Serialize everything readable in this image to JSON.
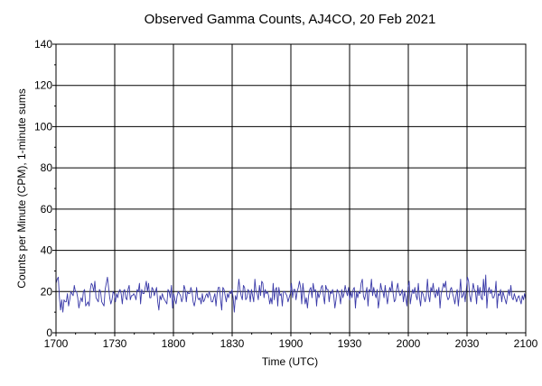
{
  "chart_data": {
    "type": "line",
    "title": "Observed Gamma Counts, AJ4CO, 20 Feb 2021",
    "xlabel": "Time (UTC)",
    "ylabel": "Counts per Minute (CPM), 1-minute sums",
    "xlim": [
      "1700",
      "2100"
    ],
    "ylim": [
      0,
      140
    ],
    "x_ticks": [
      "1700",
      "1730",
      "1800",
      "1830",
      "1900",
      "1930",
      "2000",
      "2030",
      "2100"
    ],
    "y_ticks": [
      0,
      20,
      40,
      60,
      80,
      100,
      120,
      140
    ],
    "grid": true,
    "series": [
      {
        "color": "#3a3aa8",
        "values": [
          24,
          26,
          27,
          17,
          11,
          16,
          10,
          16,
          15,
          15,
          19,
          13,
          16,
          20,
          19,
          18,
          23,
          20,
          20,
          17,
          12,
          15,
          17,
          15,
          20,
          21,
          13,
          14,
          15,
          13,
          21,
          24,
          23,
          20,
          25,
          17,
          16,
          15,
          21,
          20,
          15,
          14,
          13,
          21,
          24,
          27,
          22,
          17,
          14,
          16,
          20,
          19,
          15,
          19,
          17,
          20,
          21,
          19,
          14,
          20,
          21,
          17,
          16,
          21,
          23,
          16,
          18,
          18,
          19,
          18,
          16,
          21,
          20,
          24,
          14,
          21,
          19,
          19,
          22,
          25,
          20,
          24,
          17,
          17,
          22,
          21,
          18,
          20,
          22,
          15,
          11,
          18,
          16,
          19,
          17,
          16,
          15,
          14,
          21,
          20,
          17,
          23,
          12,
          19,
          16,
          14,
          18,
          20,
          19,
          18,
          15,
          17,
          23,
          21,
          15,
          20,
          19,
          19,
          22,
          20,
          15,
          13,
          16,
          22,
          17,
          16,
          17,
          14,
          19,
          15,
          16,
          18,
          19,
          17,
          20,
          18,
          15,
          15,
          17,
          19,
          13,
          19,
          22,
          22,
          16,
          11,
          22,
          21,
          18,
          15,
          19,
          17,
          20,
          19,
          21,
          17,
          10,
          18,
          16,
          20,
          26,
          21,
          18,
          16,
          23,
          22,
          16,
          17,
          21,
          20,
          15,
          21,
          18,
          15,
          26,
          20,
          19,
          16,
          23,
          18,
          25,
          24,
          17,
          21,
          19,
          20,
          18,
          14,
          17,
          14,
          24,
          16,
          21,
          22,
          13,
          22,
          18,
          19,
          13,
          20,
          20,
          19,
          18,
          15,
          17,
          19,
          24,
          17,
          21,
          21,
          16,
          20,
          22,
          25,
          22,
          14,
          24,
          19,
          14,
          17,
          12,
          18,
          21,
          22,
          17,
          24,
          20,
          21,
          13,
          20,
          17,
          19,
          22,
          23,
          18,
          14,
          23,
          21,
          21,
          15,
          20,
          19,
          21,
          18,
          12,
          16,
          21,
          20,
          18,
          14,
          21,
          17,
          19,
          23,
          20,
          18,
          22,
          16,
          20,
          17,
          21,
          22,
          12,
          20,
          17,
          20,
          19,
          24,
          26,
          18,
          16,
          19,
          22,
          13,
          21,
          20,
          26,
          18,
          22,
          19,
          17,
          21,
          12,
          16,
          24,
          21,
          20,
          17,
          23,
          18,
          14,
          19,
          22,
          20,
          25,
          19,
          15,
          16,
          21,
          24,
          20,
          18,
          19,
          21,
          15,
          20,
          17,
          13,
          22,
          25,
          14,
          18,
          21,
          19,
          22,
          18,
          16,
          24,
          17,
          13,
          20,
          19,
          17,
          15,
          18,
          26,
          18,
          15,
          22,
          20,
          24,
          19,
          17,
          21,
          18,
          22,
          12,
          19,
          21,
          24,
          22,
          25,
          18,
          16,
          17,
          21,
          22,
          19,
          17,
          14,
          18,
          21,
          13,
          19,
          26,
          17,
          18,
          20,
          15,
          21,
          27,
          25,
          18,
          15,
          19,
          24,
          21,
          20,
          14,
          23,
          18,
          22,
          17,
          16,
          26,
          18,
          28,
          12,
          20,
          22,
          19,
          21,
          17,
          17,
          19,
          25,
          12,
          19,
          18,
          21,
          15,
          20,
          18,
          16,
          14,
          18,
          21,
          18,
          23,
          17,
          16,
          19,
          17,
          15,
          17,
          18,
          16,
          14,
          18,
          16,
          19,
          16
        ]
      }
    ]
  }
}
